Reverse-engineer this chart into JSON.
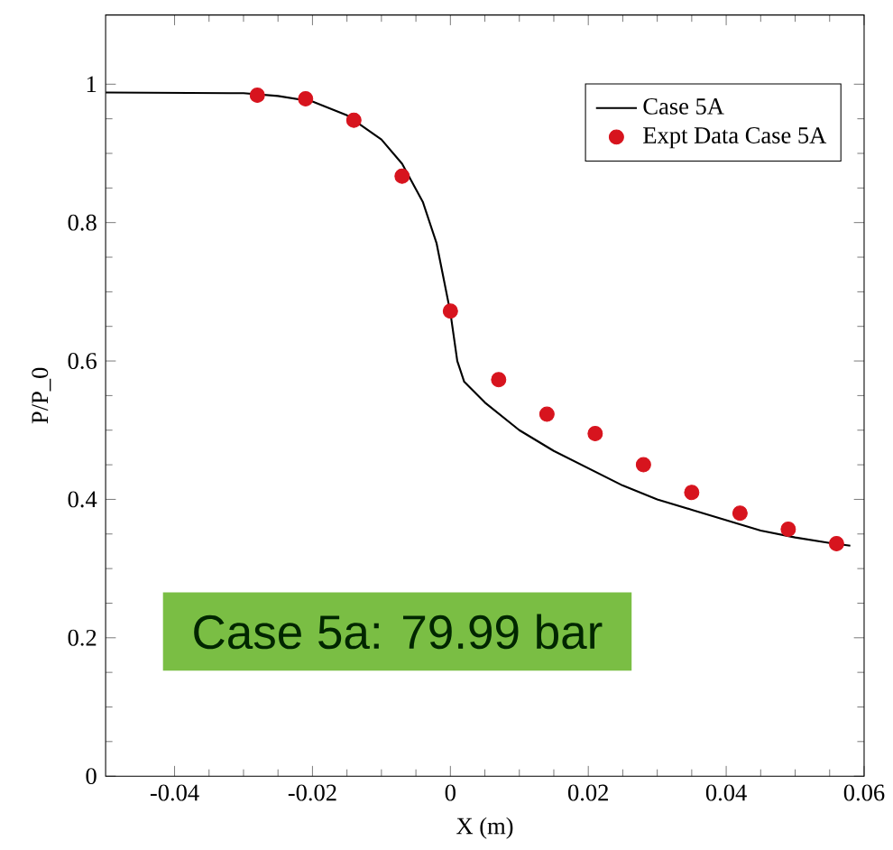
{
  "chart_data": {
    "type": "line",
    "xlabel": "X (m)",
    "ylabel": "P/P_0",
    "xlim": [
      -0.05,
      0.06
    ],
    "ylim": [
      0,
      1.1
    ],
    "xticks": [
      -0.04,
      -0.02,
      0,
      0.02,
      0.04,
      0.06
    ],
    "yticks": [
      0,
      0.2,
      0.4,
      0.6,
      0.8,
      1
    ],
    "legend": "top right",
    "grid": false,
    "annotations": [
      "Case 5a: 79.99 bar"
    ],
    "series": [
      {
        "name": "Case 5A",
        "color": "#000000",
        "marker": "none",
        "line_style": "solid",
        "x": [
          -0.05,
          -0.03,
          -0.025,
          -0.02,
          -0.015,
          -0.01,
          -0.007,
          -0.004,
          -0.002,
          -0.001,
          0,
          0.001,
          0.002,
          0.005,
          0.01,
          0.015,
          0.02,
          0.025,
          0.03,
          0.035,
          0.04,
          0.045,
          0.05,
          0.055,
          0.058
        ],
        "values": [
          0.988,
          0.987,
          0.983,
          0.975,
          0.955,
          0.92,
          0.885,
          0.83,
          0.77,
          0.72,
          0.67,
          0.6,
          0.57,
          0.54,
          0.5,
          0.47,
          0.445,
          0.42,
          0.4,
          0.385,
          0.37,
          0.355,
          0.345,
          0.337,
          0.333
        ]
      },
      {
        "name": "Expt Data Case 5A",
        "type": "scatter",
        "color": "#d7141e",
        "marker": "circle",
        "x": [
          -0.028,
          -0.021,
          -0.014,
          -0.007,
          0.0,
          0.007,
          0.014,
          0.021,
          0.028,
          0.035,
          0.042,
          0.049,
          0.056
        ],
        "values": [
          0.984,
          0.979,
          0.948,
          0.867,
          0.672,
          0.573,
          0.523,
          0.495,
          0.45,
          0.41,
          0.38,
          0.357,
          0.336
        ]
      }
    ]
  }
}
